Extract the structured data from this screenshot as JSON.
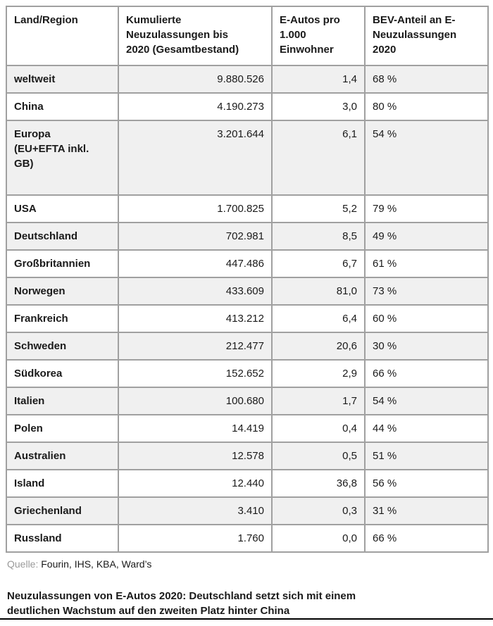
{
  "chart_data": {
    "type": "table",
    "title": "Neuzulassungen von E-Autos 2020: Deutschland setzt sich mit einem deutlichen Wachstum auf den zweiten Platz hinter China",
    "source": "Fourin, IHS, KBA, Ward’s",
    "columns": [
      "Land/Region",
      "Kumulierte Neuzulassungen bis 2020 (Gesamtbestand)",
      "E-Autos pro 1.000 Einwohner",
      "BEV-Anteil an E-Neuzulassungen 2020"
    ],
    "rows": [
      {
        "region": "weltweit",
        "kumulierte_neuzulassungen_bis_2020": 9880526,
        "e_autos_pro_1000_einwohner": 1.4,
        "bev_anteil_pct": 68
      },
      {
        "region": "China",
        "kumulierte_neuzulassungen_bis_2020": 4190273,
        "e_autos_pro_1000_einwohner": 3.0,
        "bev_anteil_pct": 80
      },
      {
        "region": "Europa (EU+EFTA inkl. GB)",
        "kumulierte_neuzulassungen_bis_2020": 3201644,
        "e_autos_pro_1000_einwohner": 6.1,
        "bev_anteil_pct": 54
      },
      {
        "region": "USA",
        "kumulierte_neuzulassungen_bis_2020": 1700825,
        "e_autos_pro_1000_einwohner": 5.2,
        "bev_anteil_pct": 79
      },
      {
        "region": "Deutschland",
        "kumulierte_neuzulassungen_bis_2020": 702981,
        "e_autos_pro_1000_einwohner": 8.5,
        "bev_anteil_pct": 49
      },
      {
        "region": "Großbritannien",
        "kumulierte_neuzulassungen_bis_2020": 447486,
        "e_autos_pro_1000_einwohner": 6.7,
        "bev_anteil_pct": 61
      },
      {
        "region": "Norwegen",
        "kumulierte_neuzulassungen_bis_2020": 433609,
        "e_autos_pro_1000_einwohner": 81.0,
        "bev_anteil_pct": 73
      },
      {
        "region": "Frankreich",
        "kumulierte_neuzulassungen_bis_2020": 413212,
        "e_autos_pro_1000_einwohner": 6.4,
        "bev_anteil_pct": 60
      },
      {
        "region": "Schweden",
        "kumulierte_neuzulassungen_bis_2020": 212477,
        "e_autos_pro_1000_einwohner": 20.6,
        "bev_anteil_pct": 30
      },
      {
        "region": "Südkorea",
        "kumulierte_neuzulassungen_bis_2020": 152652,
        "e_autos_pro_1000_einwohner": 2.9,
        "bev_anteil_pct": 66
      },
      {
        "region": "Italien",
        "kumulierte_neuzulassungen_bis_2020": 100680,
        "e_autos_pro_1000_einwohner": 1.7,
        "bev_anteil_pct": 54
      },
      {
        "region": "Polen",
        "kumulierte_neuzulassungen_bis_2020": 14419,
        "e_autos_pro_1000_einwohner": 0.4,
        "bev_anteil_pct": 44
      },
      {
        "region": "Australien",
        "kumulierte_neuzulassungen_bis_2020": 12578,
        "e_autos_pro_1000_einwohner": 0.5,
        "bev_anteil_pct": 51
      },
      {
        "region": "Island",
        "kumulierte_neuzulassungen_bis_2020": 12440,
        "e_autos_pro_1000_einwohner": 36.8,
        "bev_anteil_pct": 56
      },
      {
        "region": "Griechenland",
        "kumulierte_neuzulassungen_bis_2020": 3410,
        "e_autos_pro_1000_einwohner": 0.3,
        "bev_anteil_pct": 31
      },
      {
        "region": "Russland",
        "kumulierte_neuzulassungen_bis_2020": 1760,
        "e_autos_pro_1000_einwohner": 0.0,
        "bev_anteil_pct": 66
      }
    ]
  },
  "table": {
    "headers": [
      "Land/Region",
      "Kumulierte\nNeuzulassungen bis\n2020 (Gesamtbestand)",
      "E-Autos pro\n1.000\nEinwohner",
      "BEV-Anteil an E-\nNeuzulassungen\n2020"
    ],
    "display_rows": [
      [
        "weltweit",
        "9.880.526",
        "1,4",
        "68 %"
      ],
      [
        "China",
        "4.190.273",
        "3,0",
        "80 %"
      ],
      [
        "Europa\n(EU+EFTA inkl.\nGB)",
        "3.201.644",
        "6,1",
        "54 %"
      ],
      [
        "USA",
        "1.700.825",
        "5,2",
        "79 %"
      ],
      [
        "Deutschland",
        "702.981",
        "8,5",
        "49 %"
      ],
      [
        "Großbritannien",
        "447.486",
        "6,7",
        "61 %"
      ],
      [
        "Norwegen",
        "433.609",
        "81,0",
        "73 %"
      ],
      [
        "Frankreich",
        "413.212",
        "6,4",
        "60 %"
      ],
      [
        "Schweden",
        "212.477",
        "20,6",
        "30 %"
      ],
      [
        "Südkorea",
        "152.652",
        "2,9",
        "66 %"
      ],
      [
        "Italien",
        "100.680",
        "1,7",
        "54 %"
      ],
      [
        "Polen",
        "14.419",
        "0,4",
        "44 %"
      ],
      [
        "Australien",
        "12.578",
        "0,5",
        "51 %"
      ],
      [
        "Island",
        "12.440",
        "36,8",
        "56 %"
      ],
      [
        "Griechenland",
        "3.410",
        "0,3",
        "31 %"
      ],
      [
        "Russland",
        "1.760",
        "0,0",
        "66 %"
      ]
    ]
  },
  "footer": {
    "source_label": "Quelle:",
    "source_value": "Fourin, IHS, KBA, Ward’s",
    "caption": "Neuzulassungen von E-Autos 2020: Deutschland setzt sich mit einem\ndeutlichen Wachstum auf den zweiten Platz hinter China"
  },
  "colors": {
    "row_alt_background": "#f0f0f0",
    "cell_border": "#a0a0a0",
    "outer_border": "#8f8f8f",
    "text": "#1a1a1a",
    "muted_text": "#9a9a9a",
    "bottom_rule": "#000000"
  }
}
